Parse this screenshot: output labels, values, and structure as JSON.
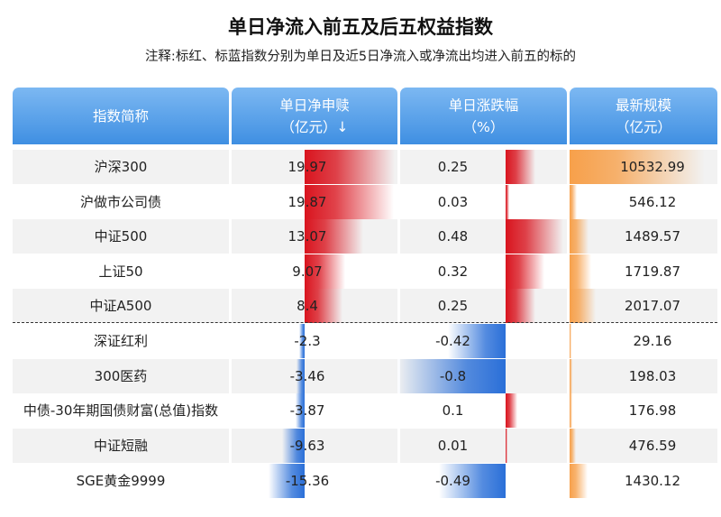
{
  "title": "单日净流入前五及后五权益指数",
  "subtitle": "注释:标红、标蓝指数分别为单日及近5日净流入或净流出均进入前五的标的",
  "headers": {
    "name": "指数简称",
    "flow_line1": "单日净申赎",
    "flow_line2": "（亿元）↓",
    "chg_line1": "单日涨跌幅",
    "chg_line2": "（%）",
    "scale_line1": "最新规模",
    "scale_line2": "（亿元）"
  },
  "colors": {
    "header_top": "#7cb8f2",
    "header_bottom": "#3f8fe2",
    "positive": "#d9141e",
    "negative": "#2a6fd8",
    "scale": "#f7a04a"
  },
  "chart_data": {
    "type": "table",
    "columns": [
      "指数简称",
      "单日净申赎（亿元）",
      "单日涨跌幅（%）",
      "最新规模（亿元）"
    ],
    "rows": [
      {
        "name": "沪深300",
        "flow": "19.97",
        "change": "0.25",
        "scale": "10532.99"
      },
      {
        "name": "沪做市公司债",
        "flow": "19.87",
        "change": "0.03",
        "scale": "546.12"
      },
      {
        "name": "中证500",
        "flow": "13.07",
        "change": "0.48",
        "scale": "1489.57"
      },
      {
        "name": "上证50",
        "flow": "9.07",
        "change": "0.32",
        "scale": "1719.87"
      },
      {
        "name": "中证A500",
        "flow": "8.4",
        "change": "0.25",
        "scale": "2017.07"
      },
      {
        "name": "深证红利",
        "flow": "-2.3",
        "change": "-0.42",
        "scale": "29.16"
      },
      {
        "name": "300医药",
        "flow": "-3.46",
        "change": "-0.8",
        "scale": "198.03"
      },
      {
        "name": "中债-30年期国债财富(总值)指数",
        "flow": "-3.87",
        "change": "0.1",
        "scale": "176.98"
      },
      {
        "name": "中证短融",
        "flow": "-9.63",
        "change": "0.01",
        "scale": "476.59"
      },
      {
        "name": "SGE黄金9999",
        "flow": "-15.36",
        "change": "-0.49",
        "scale": "1430.12"
      }
    ]
  }
}
